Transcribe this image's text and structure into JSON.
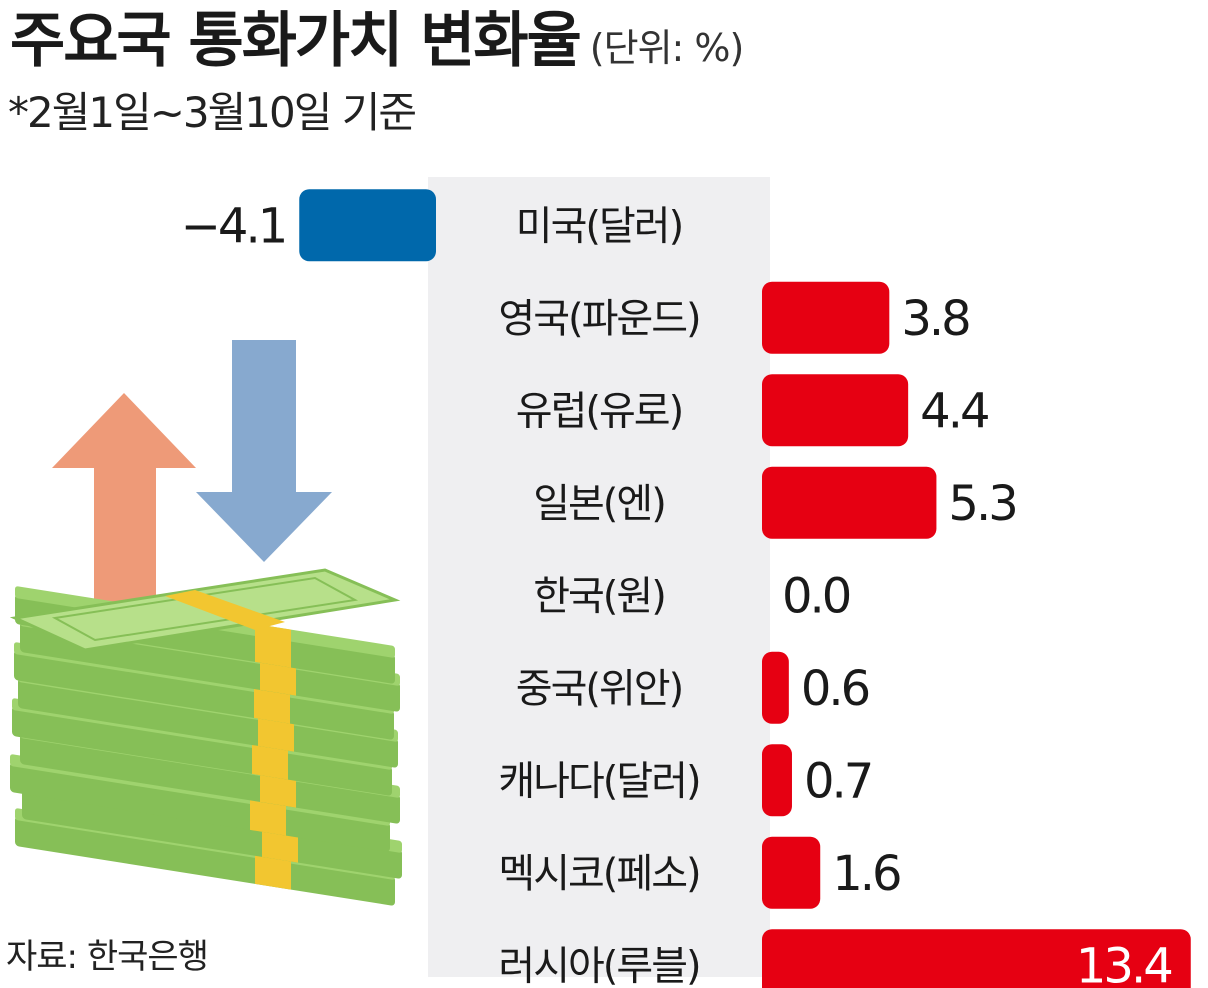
{
  "header": {
    "title": "주요국 통화가치 변화율",
    "unit": "(단위: %)",
    "subtitle": "*2월1일~3월10일 기준"
  },
  "footer": {
    "source": "자료: 한국은행"
  },
  "colors": {
    "positive": "#e60012",
    "negative": "#0068ab",
    "label_panel": "#efeff1",
    "arrow_up": "#ee9a78",
    "arrow_down": "#87a9cf",
    "money_green": "#9fd36e",
    "money_band": "#f2c630"
  },
  "illustration": {
    "icon": "money-stack-with-up-down-arrows-icon"
  },
  "chart_data": {
    "type": "bar",
    "orientation": "horizontal",
    "title": "주요국 통화가치 변화율",
    "unit": "%",
    "categories": [
      "미국(달러)",
      "영국(파운드)",
      "유럽(유로)",
      "일본(엔)",
      "한국(원)",
      "중국(위안)",
      "캐나다(달러)",
      "멕시코(페소)",
      "러시아(루블)"
    ],
    "values": [
      -4.1,
      3.8,
      4.4,
      5.3,
      0.0,
      0.6,
      0.7,
      1.6,
      13.4
    ],
    "value_labels": [
      "−4.1",
      "3.8",
      "4.4",
      "5.3",
      "0.0",
      "0.6",
      "0.7",
      "1.6",
      "13.4"
    ],
    "legend": "none",
    "grid": false
  }
}
